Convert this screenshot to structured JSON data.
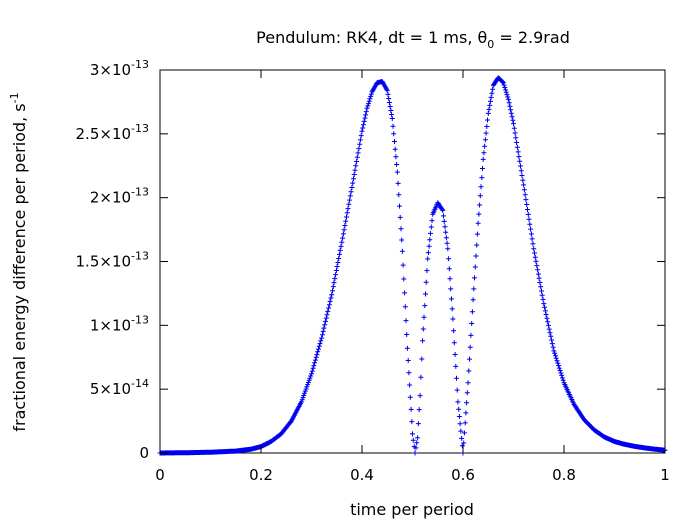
{
  "chart_data": {
    "type": "scatter",
    "title": {
      "main": "Pendulum: RK4, dt = 1 ms, θ",
      "subscript": "0",
      "suffix": " = 2.9rad"
    },
    "xlabel": "time per period",
    "ylabel": {
      "main": "fractional energy difference per period, s",
      "superscript": "-1"
    },
    "xlim": [
      0,
      1
    ],
    "ylim": [
      0,
      3e-13
    ],
    "grid": false,
    "marker": "plus",
    "color": "#0000ee",
    "x_ticks": [
      {
        "value": 0,
        "label": "0"
      },
      {
        "value": 0.2,
        "label": "0.2"
      },
      {
        "value": 0.4,
        "label": "0.4"
      },
      {
        "value": 0.6,
        "label": "0.6"
      },
      {
        "value": 0.8,
        "label": "0.8"
      },
      {
        "value": 1,
        "label": "1"
      }
    ],
    "y_ticks": [
      {
        "value": 0,
        "mant": "0",
        "exp": ""
      },
      {
        "value": 5e-14,
        "mant": "5×10",
        "exp": "-14"
      },
      {
        "value": 1e-13,
        "mant": "1×10",
        "exp": "-13"
      },
      {
        "value": 1.5e-13,
        "mant": "1.5×10",
        "exp": "-13"
      },
      {
        "value": 2e-13,
        "mant": "2×10",
        "exp": "-13"
      },
      {
        "value": 2.5e-13,
        "mant": "2.5×10",
        "exp": "-13"
      },
      {
        "value": 3e-13,
        "mant": "3×10",
        "exp": "-13"
      }
    ],
    "series": [
      {
        "x": [
          0.0,
          0.05,
          0.1,
          0.15,
          0.18,
          0.2,
          0.22,
          0.24,
          0.26,
          0.28,
          0.3,
          0.32,
          0.34,
          0.36,
          0.38,
          0.4,
          0.41,
          0.42,
          0.43,
          0.44,
          0.45,
          0.46,
          0.47,
          0.48,
          0.49,
          0.5,
          0.505,
          0.51,
          0.515,
          0.52,
          0.53,
          0.54,
          0.55,
          0.56,
          0.57,
          0.58,
          0.59,
          0.6,
          0.61,
          0.62,
          0.63,
          0.64,
          0.65,
          0.66,
          0.67,
          0.68,
          0.69,
          0.7,
          0.72,
          0.74,
          0.76,
          0.78,
          0.8,
          0.82,
          0.84,
          0.86,
          0.88,
          0.9,
          0.92,
          0.94,
          0.96,
          0.98,
          1.0
        ],
        "y": [
          0.0,
          2e-16,
          6e-16,
          1.5e-15,
          3e-15,
          5e-15,
          9e-15,
          1.5e-14,
          2.5e-14,
          4e-14,
          6.2e-14,
          9e-14,
          1.24e-13,
          1.65e-13,
          2.08e-13,
          2.52e-13,
          2.7e-13,
          2.83e-13,
          2.9e-13,
          2.91e-13,
          2.84e-13,
          2.62e-13,
          2.2e-13,
          1.58e-13,
          8.2e-14,
          1.5e-14,
          0.0,
          1.2e-14,
          4.5e-14,
          8.8e-14,
          1.52e-13,
          1.87e-13,
          1.96e-13,
          1.9e-13,
          1.6e-13,
          1.05e-13,
          4e-14,
          0.0,
          5.5e-14,
          1.2e-13,
          1.8e-13,
          2.3e-13,
          2.66e-13,
          2.88e-13,
          2.94e-13,
          2.9e-13,
          2.77e-13,
          2.58e-13,
          2.1e-13,
          1.6e-13,
          1.17e-13,
          8e-14,
          5.5e-14,
          3.8e-14,
          2.6e-14,
          1.8e-14,
          1.25e-14,
          9e-15,
          6.8e-15,
          5.2e-15,
          4e-15,
          3e-15,
          2.2e-15
        ]
      }
    ]
  }
}
